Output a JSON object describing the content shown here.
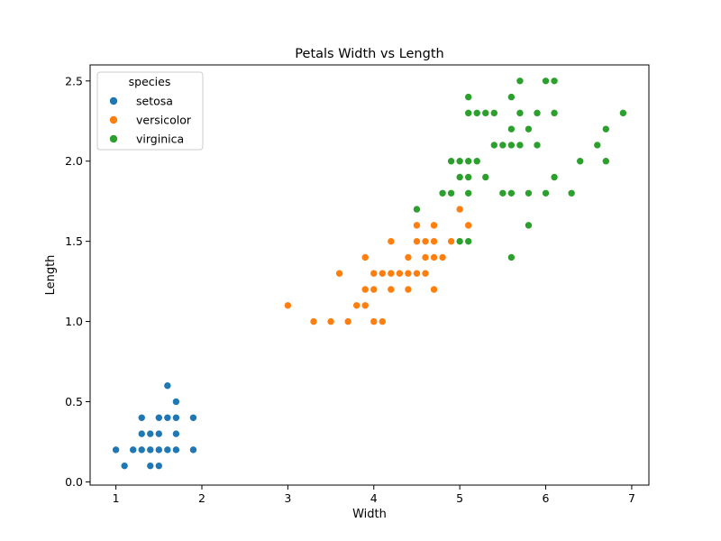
{
  "chart_data": {
    "type": "scatter",
    "title": "Petals Width vs Length",
    "xlabel": "Width",
    "ylabel": "Length",
    "xlim": [
      0.7,
      7.2
    ],
    "ylim": [
      -0.02,
      2.6
    ],
    "xticks": [
      1,
      2,
      3,
      4,
      5,
      6,
      7
    ],
    "yticks": [
      0.0,
      0.5,
      1.0,
      1.5,
      2.0,
      2.5
    ],
    "xtick_labels": [
      "1",
      "2",
      "3",
      "4",
      "5",
      "6",
      "7"
    ],
    "ytick_labels": [
      "0.0",
      "0.5",
      "1.0",
      "1.5",
      "2.0",
      "2.5"
    ],
    "grid": false,
    "legend": {
      "title": "species",
      "placement": "top-left"
    },
    "series": [
      {
        "name": "setosa",
        "color": "#1f77b4",
        "points": [
          [
            1.4,
            0.2
          ],
          [
            1.4,
            0.2
          ],
          [
            1.3,
            0.2
          ],
          [
            1.5,
            0.2
          ],
          [
            1.4,
            0.2
          ],
          [
            1.7,
            0.4
          ],
          [
            1.4,
            0.3
          ],
          [
            1.5,
            0.2
          ],
          [
            1.4,
            0.2
          ],
          [
            1.5,
            0.1
          ],
          [
            1.5,
            0.2
          ],
          [
            1.6,
            0.2
          ],
          [
            1.4,
            0.1
          ],
          [
            1.1,
            0.1
          ],
          [
            1.2,
            0.2
          ],
          [
            1.5,
            0.4
          ],
          [
            1.3,
            0.4
          ],
          [
            1.4,
            0.3
          ],
          [
            1.7,
            0.3
          ],
          [
            1.5,
            0.3
          ],
          [
            1.7,
            0.2
          ],
          [
            1.5,
            0.4
          ],
          [
            1.0,
            0.2
          ],
          [
            1.7,
            0.5
          ],
          [
            1.9,
            0.2
          ],
          [
            1.6,
            0.2
          ],
          [
            1.6,
            0.4
          ],
          [
            1.5,
            0.2
          ],
          [
            1.4,
            0.2
          ],
          [
            1.6,
            0.2
          ],
          [
            1.6,
            0.2
          ],
          [
            1.5,
            0.4
          ],
          [
            1.5,
            0.1
          ],
          [
            1.4,
            0.2
          ],
          [
            1.5,
            0.2
          ],
          [
            1.2,
            0.2
          ],
          [
            1.3,
            0.2
          ],
          [
            1.4,
            0.1
          ],
          [
            1.3,
            0.2
          ],
          [
            1.5,
            0.2
          ],
          [
            1.3,
            0.3
          ],
          [
            1.3,
            0.3
          ],
          [
            1.3,
            0.2
          ],
          [
            1.6,
            0.6
          ],
          [
            1.9,
            0.4
          ],
          [
            1.4,
            0.3
          ],
          [
            1.6,
            0.2
          ],
          [
            1.4,
            0.2
          ],
          [
            1.5,
            0.2
          ],
          [
            1.4,
            0.2
          ]
        ]
      },
      {
        "name": "versicolor",
        "color": "#ff7f0e",
        "points": [
          [
            4.7,
            1.4
          ],
          [
            4.5,
            1.5
          ],
          [
            4.9,
            1.5
          ],
          [
            4.0,
            1.3
          ],
          [
            4.6,
            1.5
          ],
          [
            4.5,
            1.3
          ],
          [
            4.7,
            1.6
          ],
          [
            3.3,
            1.0
          ],
          [
            4.6,
            1.3
          ],
          [
            3.9,
            1.4
          ],
          [
            3.5,
            1.0
          ],
          [
            4.2,
            1.5
          ],
          [
            4.0,
            1.0
          ],
          [
            4.7,
            1.4
          ],
          [
            3.6,
            1.3
          ],
          [
            4.4,
            1.4
          ],
          [
            4.5,
            1.5
          ],
          [
            4.1,
            1.0
          ],
          [
            4.5,
            1.5
          ],
          [
            3.9,
            1.1
          ],
          [
            4.8,
            1.8
          ],
          [
            4.0,
            1.3
          ],
          [
            4.9,
            1.5
          ],
          [
            4.7,
            1.2
          ],
          [
            4.3,
            1.3
          ],
          [
            4.4,
            1.4
          ],
          [
            4.8,
            1.4
          ],
          [
            5.0,
            1.7
          ],
          [
            4.5,
            1.5
          ],
          [
            3.5,
            1.0
          ],
          [
            3.8,
            1.1
          ],
          [
            3.7,
            1.0
          ],
          [
            3.9,
            1.2
          ],
          [
            5.1,
            1.6
          ],
          [
            4.5,
            1.5
          ],
          [
            4.5,
            1.6
          ],
          [
            4.7,
            1.5
          ],
          [
            4.4,
            1.3
          ],
          [
            4.1,
            1.3
          ],
          [
            4.0,
            1.3
          ],
          [
            4.4,
            1.2
          ],
          [
            4.6,
            1.4
          ],
          [
            4.0,
            1.2
          ],
          [
            3.3,
            1.0
          ],
          [
            4.2,
            1.3
          ],
          [
            4.2,
            1.2
          ],
          [
            4.2,
            1.3
          ],
          [
            4.3,
            1.3
          ],
          [
            3.0,
            1.1
          ],
          [
            4.1,
            1.3
          ]
        ]
      },
      {
        "name": "virginica",
        "color": "#2ca02c",
        "points": [
          [
            6.0,
            2.5
          ],
          [
            5.1,
            1.9
          ],
          [
            5.9,
            2.1
          ],
          [
            5.6,
            1.8
          ],
          [
            5.8,
            2.2
          ],
          [
            6.6,
            2.1
          ],
          [
            4.5,
            1.7
          ],
          [
            6.3,
            1.8
          ],
          [
            5.8,
            1.8
          ],
          [
            6.1,
            2.5
          ],
          [
            5.1,
            2.0
          ],
          [
            5.3,
            1.9
          ],
          [
            5.5,
            2.1
          ],
          [
            5.0,
            2.0
          ],
          [
            5.1,
            2.4
          ],
          [
            5.3,
            2.3
          ],
          [
            5.5,
            1.8
          ],
          [
            6.7,
            2.2
          ],
          [
            6.9,
            2.3
          ],
          [
            5.0,
            1.5
          ],
          [
            5.7,
            2.3
          ],
          [
            4.9,
            2.0
          ],
          [
            6.7,
            2.0
          ],
          [
            4.9,
            1.8
          ],
          [
            5.7,
            2.1
          ],
          [
            6.0,
            1.8
          ],
          [
            4.8,
            1.8
          ],
          [
            4.9,
            1.8
          ],
          [
            5.6,
            2.1
          ],
          [
            5.8,
            1.6
          ],
          [
            6.1,
            1.9
          ],
          [
            6.4,
            2.0
          ],
          [
            5.6,
            2.2
          ],
          [
            5.1,
            1.5
          ],
          [
            5.6,
            1.4
          ],
          [
            6.1,
            2.3
          ],
          [
            5.6,
            2.4
          ],
          [
            5.5,
            1.8
          ],
          [
            4.8,
            1.8
          ],
          [
            5.4,
            2.1
          ],
          [
            5.6,
            2.4
          ],
          [
            5.1,
            2.3
          ],
          [
            5.1,
            1.9
          ],
          [
            5.9,
            2.3
          ],
          [
            5.7,
            2.5
          ],
          [
            5.2,
            2.3
          ],
          [
            5.0,
            1.9
          ],
          [
            5.2,
            2.0
          ],
          [
            5.4,
            2.3
          ],
          [
            5.1,
            1.8
          ]
        ]
      }
    ]
  }
}
